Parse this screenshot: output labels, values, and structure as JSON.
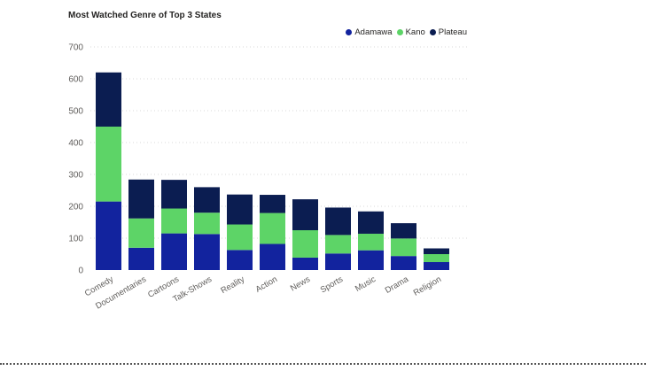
{
  "chart_data": {
    "type": "bar",
    "stacked": true,
    "title": "Most Watched Genre of Top 3 States",
    "xlabel": "",
    "ylabel": "",
    "ylim": [
      0,
      700
    ],
    "yticks": [
      0,
      100,
      200,
      300,
      400,
      500,
      600,
      700
    ],
    "grid": true,
    "legend_position": "top-right",
    "categories": [
      "Comedy",
      "Documentaries",
      "Cartoons",
      "Talk-Shows",
      "Reality",
      "Action",
      "News",
      "Sports",
      "Music",
      "Drama",
      "Religion"
    ],
    "series": [
      {
        "name": "Adamawa",
        "color": "#12239E",
        "values": [
          215,
          70,
          115,
          113,
          63,
          82,
          39,
          52,
          62,
          44,
          25
        ]
      },
      {
        "name": "Kano",
        "color": "#5DD467",
        "values": [
          235,
          92,
          78,
          67,
          80,
          97,
          86,
          58,
          52,
          55,
          25
        ]
      },
      {
        "name": "Plateau",
        "color": "#0B1D51",
        "values": [
          170,
          122,
          90,
          80,
          94,
          57,
          97,
          86,
          70,
          48,
          18
        ]
      }
    ]
  }
}
